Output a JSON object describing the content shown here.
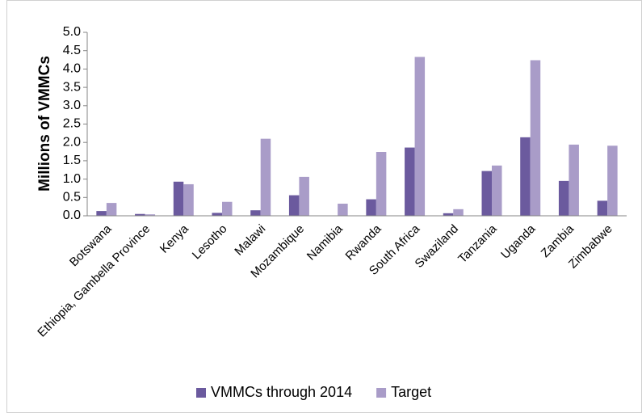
{
  "chart_data": {
    "type": "bar",
    "y_label": "Millions of VMMCs",
    "categories": [
      "Botswana",
      "Ethiopia, Gambella Province",
      "Kenya",
      "Lesotho",
      "Malawi",
      "Mozambique",
      "Namibia",
      "Rwanda",
      "South Africa",
      "Swaziland",
      "Tanzania",
      "Uganda",
      "Zambia",
      "Zimbabwe"
    ],
    "series": [
      {
        "name": "VMMCs through 2014",
        "color": "#6b5a9e",
        "values": [
          0.13,
          0.05,
          0.93,
          0.08,
          0.15,
          0.56,
          0.01,
          0.45,
          1.86,
          0.07,
          1.22,
          2.14,
          0.95,
          0.41
        ]
      },
      {
        "name": "Target",
        "color": "#a99cc8",
        "values": [
          0.35,
          0.04,
          0.86,
          0.38,
          2.1,
          1.06,
          0.33,
          1.74,
          4.33,
          0.18,
          1.37,
          4.24,
          1.94,
          1.91
        ]
      }
    ],
    "ylim": [
      0,
      5
    ],
    "yticks": [
      {
        "value": 0,
        "label": "0.0"
      },
      {
        "value": 0.5,
        "label": "0.5"
      },
      {
        "value": 1,
        "label": "1.0"
      },
      {
        "value": 1.5,
        "label": "1.5"
      },
      {
        "value": 2,
        "label": "2.0"
      },
      {
        "value": 2.5,
        "label": "2.5"
      },
      {
        "value": 3,
        "label": "3.0"
      },
      {
        "value": 3.5,
        "label": "3.5"
      },
      {
        "value": 4,
        "label": "4.0"
      },
      {
        "value": 4.5,
        "label": "4.5"
      },
      {
        "value": 5,
        "label": "5.0"
      }
    ],
    "grid": false,
    "legend": "bottom"
  }
}
